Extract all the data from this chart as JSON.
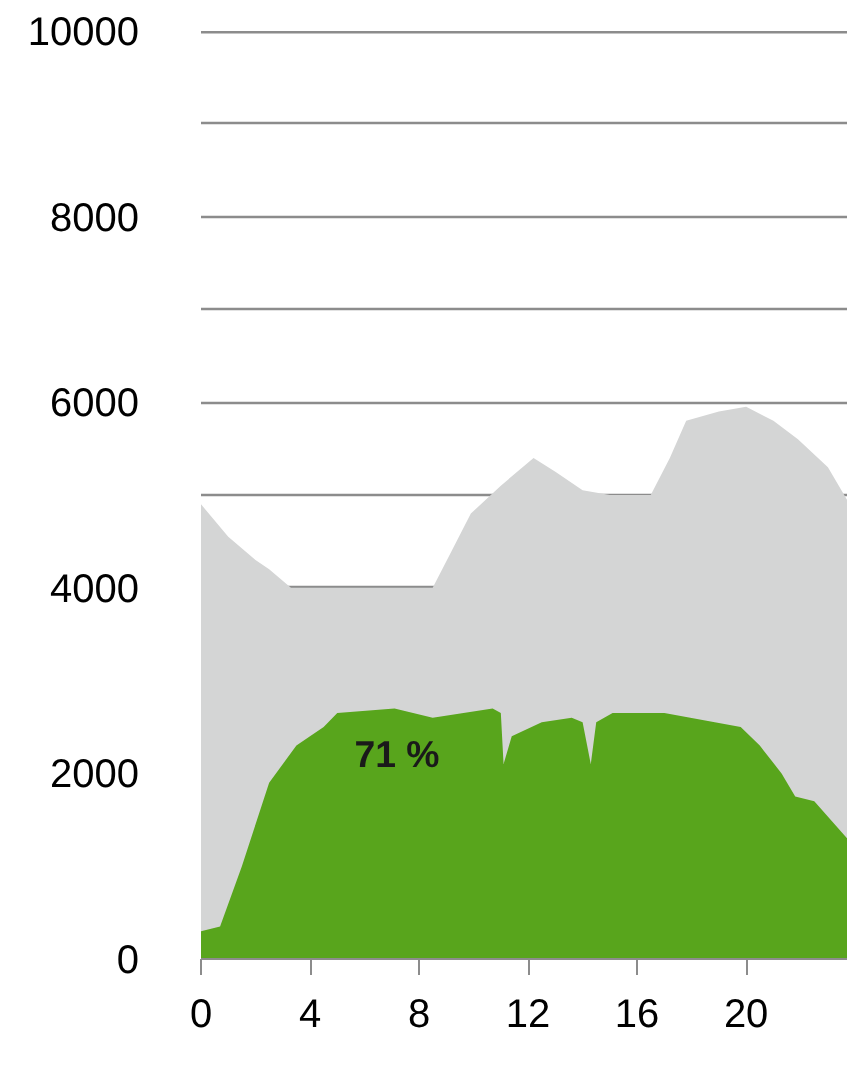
{
  "chart_data": {
    "type": "area",
    "annotations": [
      "71 %"
    ],
    "xlim": [
      0,
      23.7
    ],
    "xticks": [
      0,
      4,
      8,
      12,
      16,
      20
    ],
    "ylim": [
      0,
      10000
    ],
    "yticks": [
      0,
      2000,
      4000,
      {
        "value": 5000,
        "label": null
      },
      6000,
      {
        "value": 7000,
        "label": null
      },
      8000,
      {
        "value": 9000,
        "label": null
      },
      10000
    ],
    "grid": "y",
    "series": [
      {
        "color": "#d4d5d5",
        "x": [
          0,
          1,
          2,
          2.5,
          3.3,
          5,
          7,
          8.5,
          9.2,
          9.9,
          11,
          12.2,
          13,
          14,
          15,
          16.5,
          17.2,
          17.8,
          19,
          20,
          21,
          21.9,
          23,
          23.7
        ],
        "values": [
          4900,
          4550,
          4300,
          4200,
          4000,
          4000,
          4000,
          4000,
          4400,
          4800,
          5100,
          5400,
          5250,
          5050,
          5000,
          5000,
          5400,
          5800,
          5900,
          5950,
          5800,
          5600,
          5300,
          4950
        ]
      },
      {
        "color": "#58a51c",
        "x": [
          0,
          0.7,
          1.5,
          2.5,
          3.5,
          4.5,
          5,
          7.1,
          8.5,
          10.7,
          11,
          11.1,
          11.4,
          12.5,
          13.6,
          14,
          14.3,
          14.5,
          15.1,
          17,
          19.8,
          20.5,
          21.3,
          21.8,
          22.5,
          23.7
        ],
        "values": [
          300,
          350,
          1000,
          1900,
          2300,
          2500,
          2650,
          2700,
          2600,
          2700,
          2650,
          2100,
          2400,
          2550,
          2600,
          2550,
          2100,
          2550,
          2650,
          2650,
          2500,
          2300,
          2000,
          1750,
          1700,
          1300
        ]
      }
    ]
  }
}
